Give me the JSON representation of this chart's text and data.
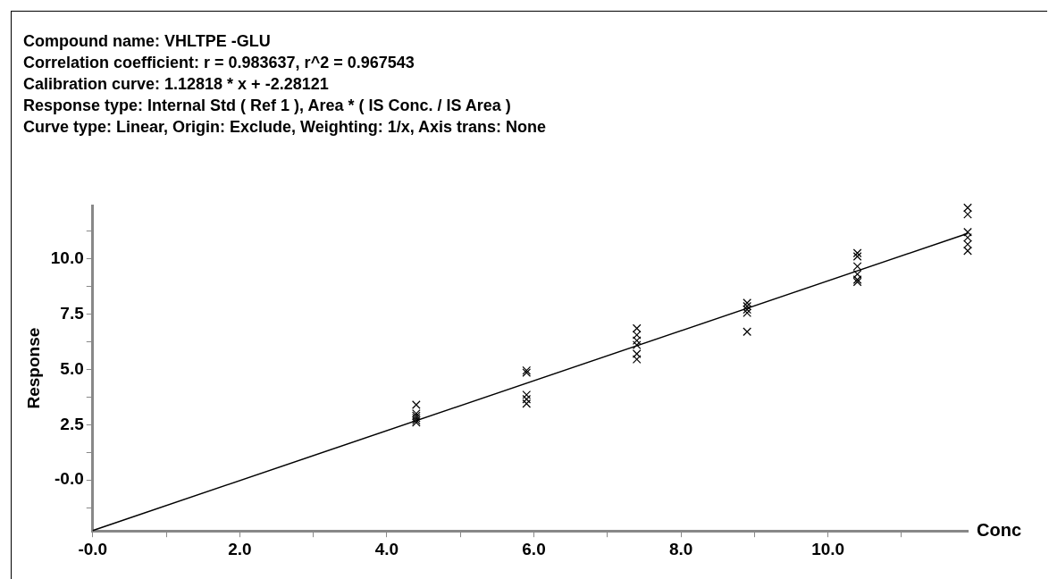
{
  "chart_data": {
    "type": "scatter",
    "title": "Compound name: VHLTPE -GLU",
    "annotations": [
      "Correlation coefficient: r = 0.983637, r^2 = 0.967543",
      "Calibration curve: 1.12818 * x + -2.28121",
      "Response type: Internal Std ( Ref 1 ), Area * ( IS Conc. / IS Area )",
      "Curve type: Linear, Origin: Exclude, Weighting: 1/x, Axis trans: None"
    ],
    "xlabel": "Conc",
    "ylabel": "Response",
    "xlim": [
      0,
      11.9
    ],
    "ylim": [
      -2.3,
      12.4
    ],
    "xticks": [
      {
        "value": 0,
        "label": "-0.0"
      },
      {
        "value": 1,
        "label": null
      },
      "2.0",
      {
        "value": 3,
        "label": null
      },
      {
        "value": 4,
        "label": "4.0"
      },
      {
        "value": 5,
        "label": null
      },
      {
        "value": 6,
        "label": "6.0"
      },
      {
        "value": 7,
        "label": null
      },
      {
        "value": 8,
        "label": "8.0"
      },
      {
        "value": 9,
        "label": null
      },
      {
        "value": 10,
        "label": "10.0"
      },
      {
        "value": 11,
        "label": null
      }
    ],
    "yticks": [
      {
        "value": -1.25,
        "label": null
      },
      {
        "value": 0,
        "label": "-0.0"
      },
      {
        "value": 1.25,
        "label": null
      },
      {
        "value": 2.5,
        "label": "2.5"
      },
      {
        "value": 3.75,
        "label": null
      },
      {
        "value": 5,
        "label": "5.0"
      },
      {
        "value": 6.25,
        "label": null
      },
      {
        "value": 7.5,
        "label": "7.5"
      },
      {
        "value": 8.75,
        "label": null
      },
      {
        "value": 10,
        "label": "10.0"
      },
      {
        "value": 11.25,
        "label": null
      }
    ],
    "marker": "cross",
    "grid": false,
    "legend": false,
    "series": [
      {
        "type": "scatter",
        "color": "#000000",
        "x": [
          4.4,
          4.4,
          4.4,
          4.4,
          4.4,
          4.4,
          5.9,
          5.9,
          5.9,
          5.9,
          5.9,
          7.4,
          7.4,
          7.4,
          7.4,
          7.4,
          7.4,
          8.9,
          8.9,
          8.9,
          8.9,
          8.9,
          10.4,
          10.4,
          10.4,
          10.4,
          10.4,
          10.4,
          11.9,
          11.9,
          11.9,
          11.9,
          11.9,
          11.9
        ],
        "values": [
          3.4,
          3.0,
          2.9,
          2.8,
          2.7,
          2.6,
          4.95,
          4.85,
          3.85,
          3.65,
          3.45,
          6.85,
          6.55,
          6.3,
          6.1,
          5.7,
          5.45,
          8.0,
          7.85,
          7.7,
          7.55,
          6.7,
          10.25,
          10.1,
          9.65,
          9.3,
          9.05,
          8.95,
          12.3,
          12.0,
          11.2,
          10.95,
          10.65,
          10.35
        ]
      },
      {
        "type": "line",
        "color": "#000000",
        "marker": "none",
        "x": [
          0,
          11.9
        ],
        "values": [
          -2.28,
          11.14
        ]
      }
    ]
  }
}
